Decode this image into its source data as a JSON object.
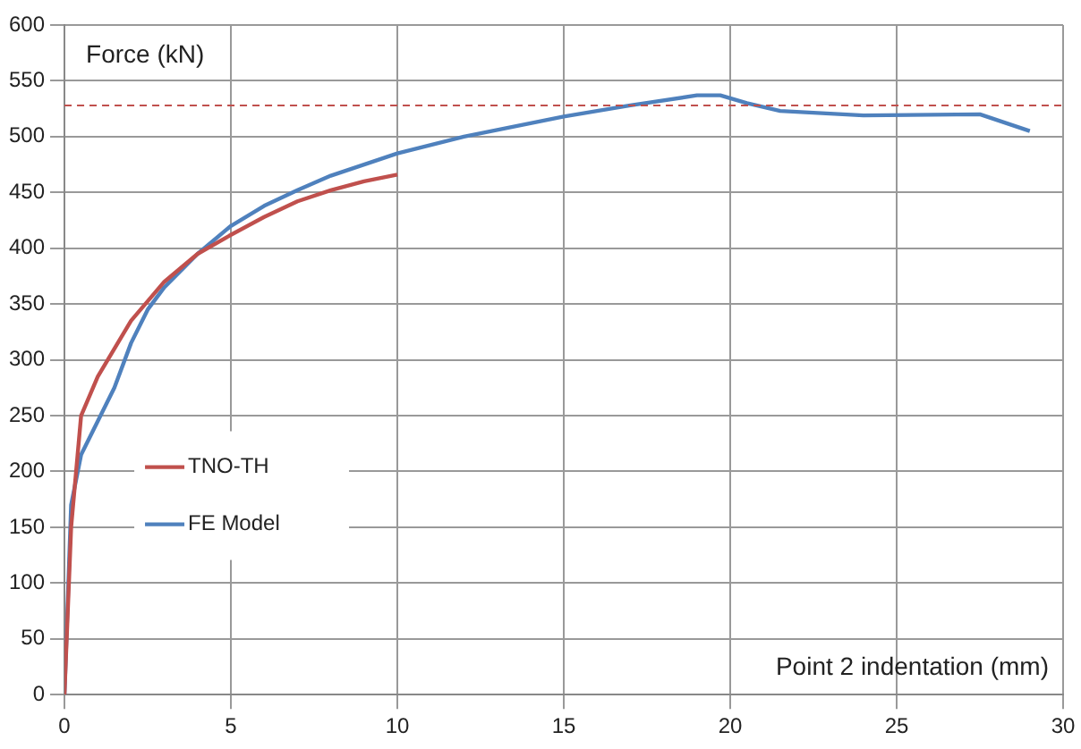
{
  "chart_data": {
    "type": "line",
    "xlabel": "Point 2 indentation (mm)",
    "ylabel": "Force (kN)",
    "xlim": [
      0,
      30
    ],
    "xticks": [
      0,
      5,
      10,
      15,
      20,
      25,
      30
    ],
    "ylim": [
      0,
      600
    ],
    "yticks": [
      0,
      50,
      100,
      150,
      200,
      250,
      300,
      350,
      400,
      450,
      500,
      550,
      600
    ],
    "grid": true,
    "legend": "left",
    "marker": "none",
    "line_style": "solid",
    "series": [
      {
        "name": "TNO-TH",
        "color": "#c0504d",
        "x": [
          0,
          0.2,
          0.5,
          1,
          2,
          3,
          4,
          5,
          6,
          7,
          8,
          9,
          10
        ],
        "values": [
          0,
          150,
          250,
          285,
          335,
          370,
          395,
          412,
          428,
          442,
          452,
          460,
          466
        ]
      },
      {
        "name": "FE Model",
        "color": "#4f81bd",
        "x": [
          0,
          0.2,
          0.5,
          1,
          1.5,
          2,
          2.5,
          3,
          4,
          5,
          6,
          7,
          8,
          10,
          12,
          15,
          17,
          19,
          19.7,
          20.5,
          21.5,
          24,
          27.5,
          29
        ],
        "values": [
          0,
          170,
          215,
          245,
          275,
          315,
          345,
          365,
          395,
          420,
          438,
          452,
          465,
          485,
          500,
          518,
          528,
          537,
          537,
          530,
          523,
          519,
          520,
          505
        ]
      }
    ],
    "ref_lines": [
      {
        "axis": "y",
        "value": 528,
        "color": "#c0504d",
        "line_style": "dashed"
      }
    ]
  }
}
